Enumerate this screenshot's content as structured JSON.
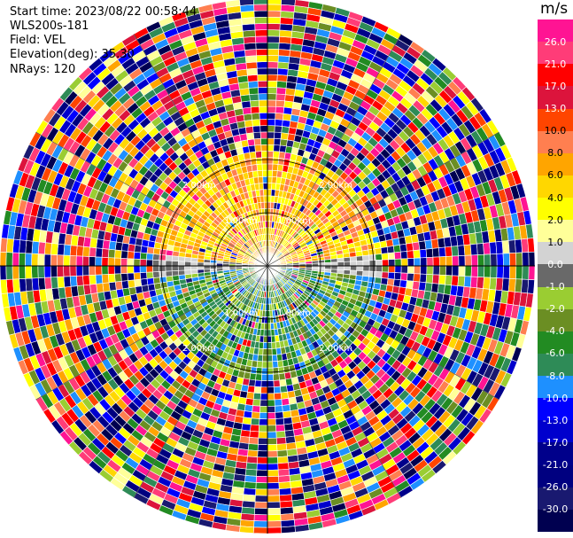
{
  "header": {
    "start_time": "Start time: 2023/08/22 00:58:44",
    "instrument": "WLS200s-181",
    "field": "Field: VEL",
    "elevation": "Elevation(deg): 35.30",
    "nrays": "NRays: 120"
  },
  "chart_data": {
    "type": "heatmap",
    "projection": "polar-ppi",
    "field": "VEL",
    "units": "m/s",
    "n_rays": 120,
    "elevation_deg": 35.3,
    "range_rings_km": [
      1.0,
      2.0
    ],
    "ring_label": {
      "one_km": "1.00km",
      "two_km": "2.00km"
    },
    "colorbar": {
      "title": "m/s",
      "ticks": [
        "26.0",
        "21.0",
        "17.0",
        "13.0",
        "10.0",
        "8.0",
        "6.0",
        "4.0",
        "2.0",
        "1.0",
        "0.0",
        "-1.0",
        "-2.0",
        "-4.0",
        "-6.0",
        "-8.0",
        "-10.0",
        "-13.0",
        "-17.0",
        "-21.0",
        "-26.0",
        "-30.0"
      ],
      "colors": [
        "#ff1493",
        "#ff3c78",
        "#ff0000",
        "#dc143c",
        "#ff4500",
        "#ff7f50",
        "#ffa500",
        "#ffd700",
        "#ffff00",
        "#ffff99",
        "#d3d3d3",
        "#696969",
        "#9acd32",
        "#6b8e23",
        "#228b22",
        "#2e8b57",
        "#1e90ff",
        "#0000ff",
        "#0000cd",
        "#00008b",
        "#000080",
        "#191970",
        "#000050"
      ]
    },
    "pattern": {
      "positive_sector_deg": [
        270,
        90
      ],
      "positive_core_colors": [
        "#ffa500",
        "#ff7f50",
        "#ffd700",
        "#ffff00"
      ],
      "negative_core_colors": [
        "#2e8b57",
        "#6b8e23",
        "#9acd32",
        "#228b22",
        "#1e90ff"
      ],
      "noise_start_km": 2.2
    }
  }
}
